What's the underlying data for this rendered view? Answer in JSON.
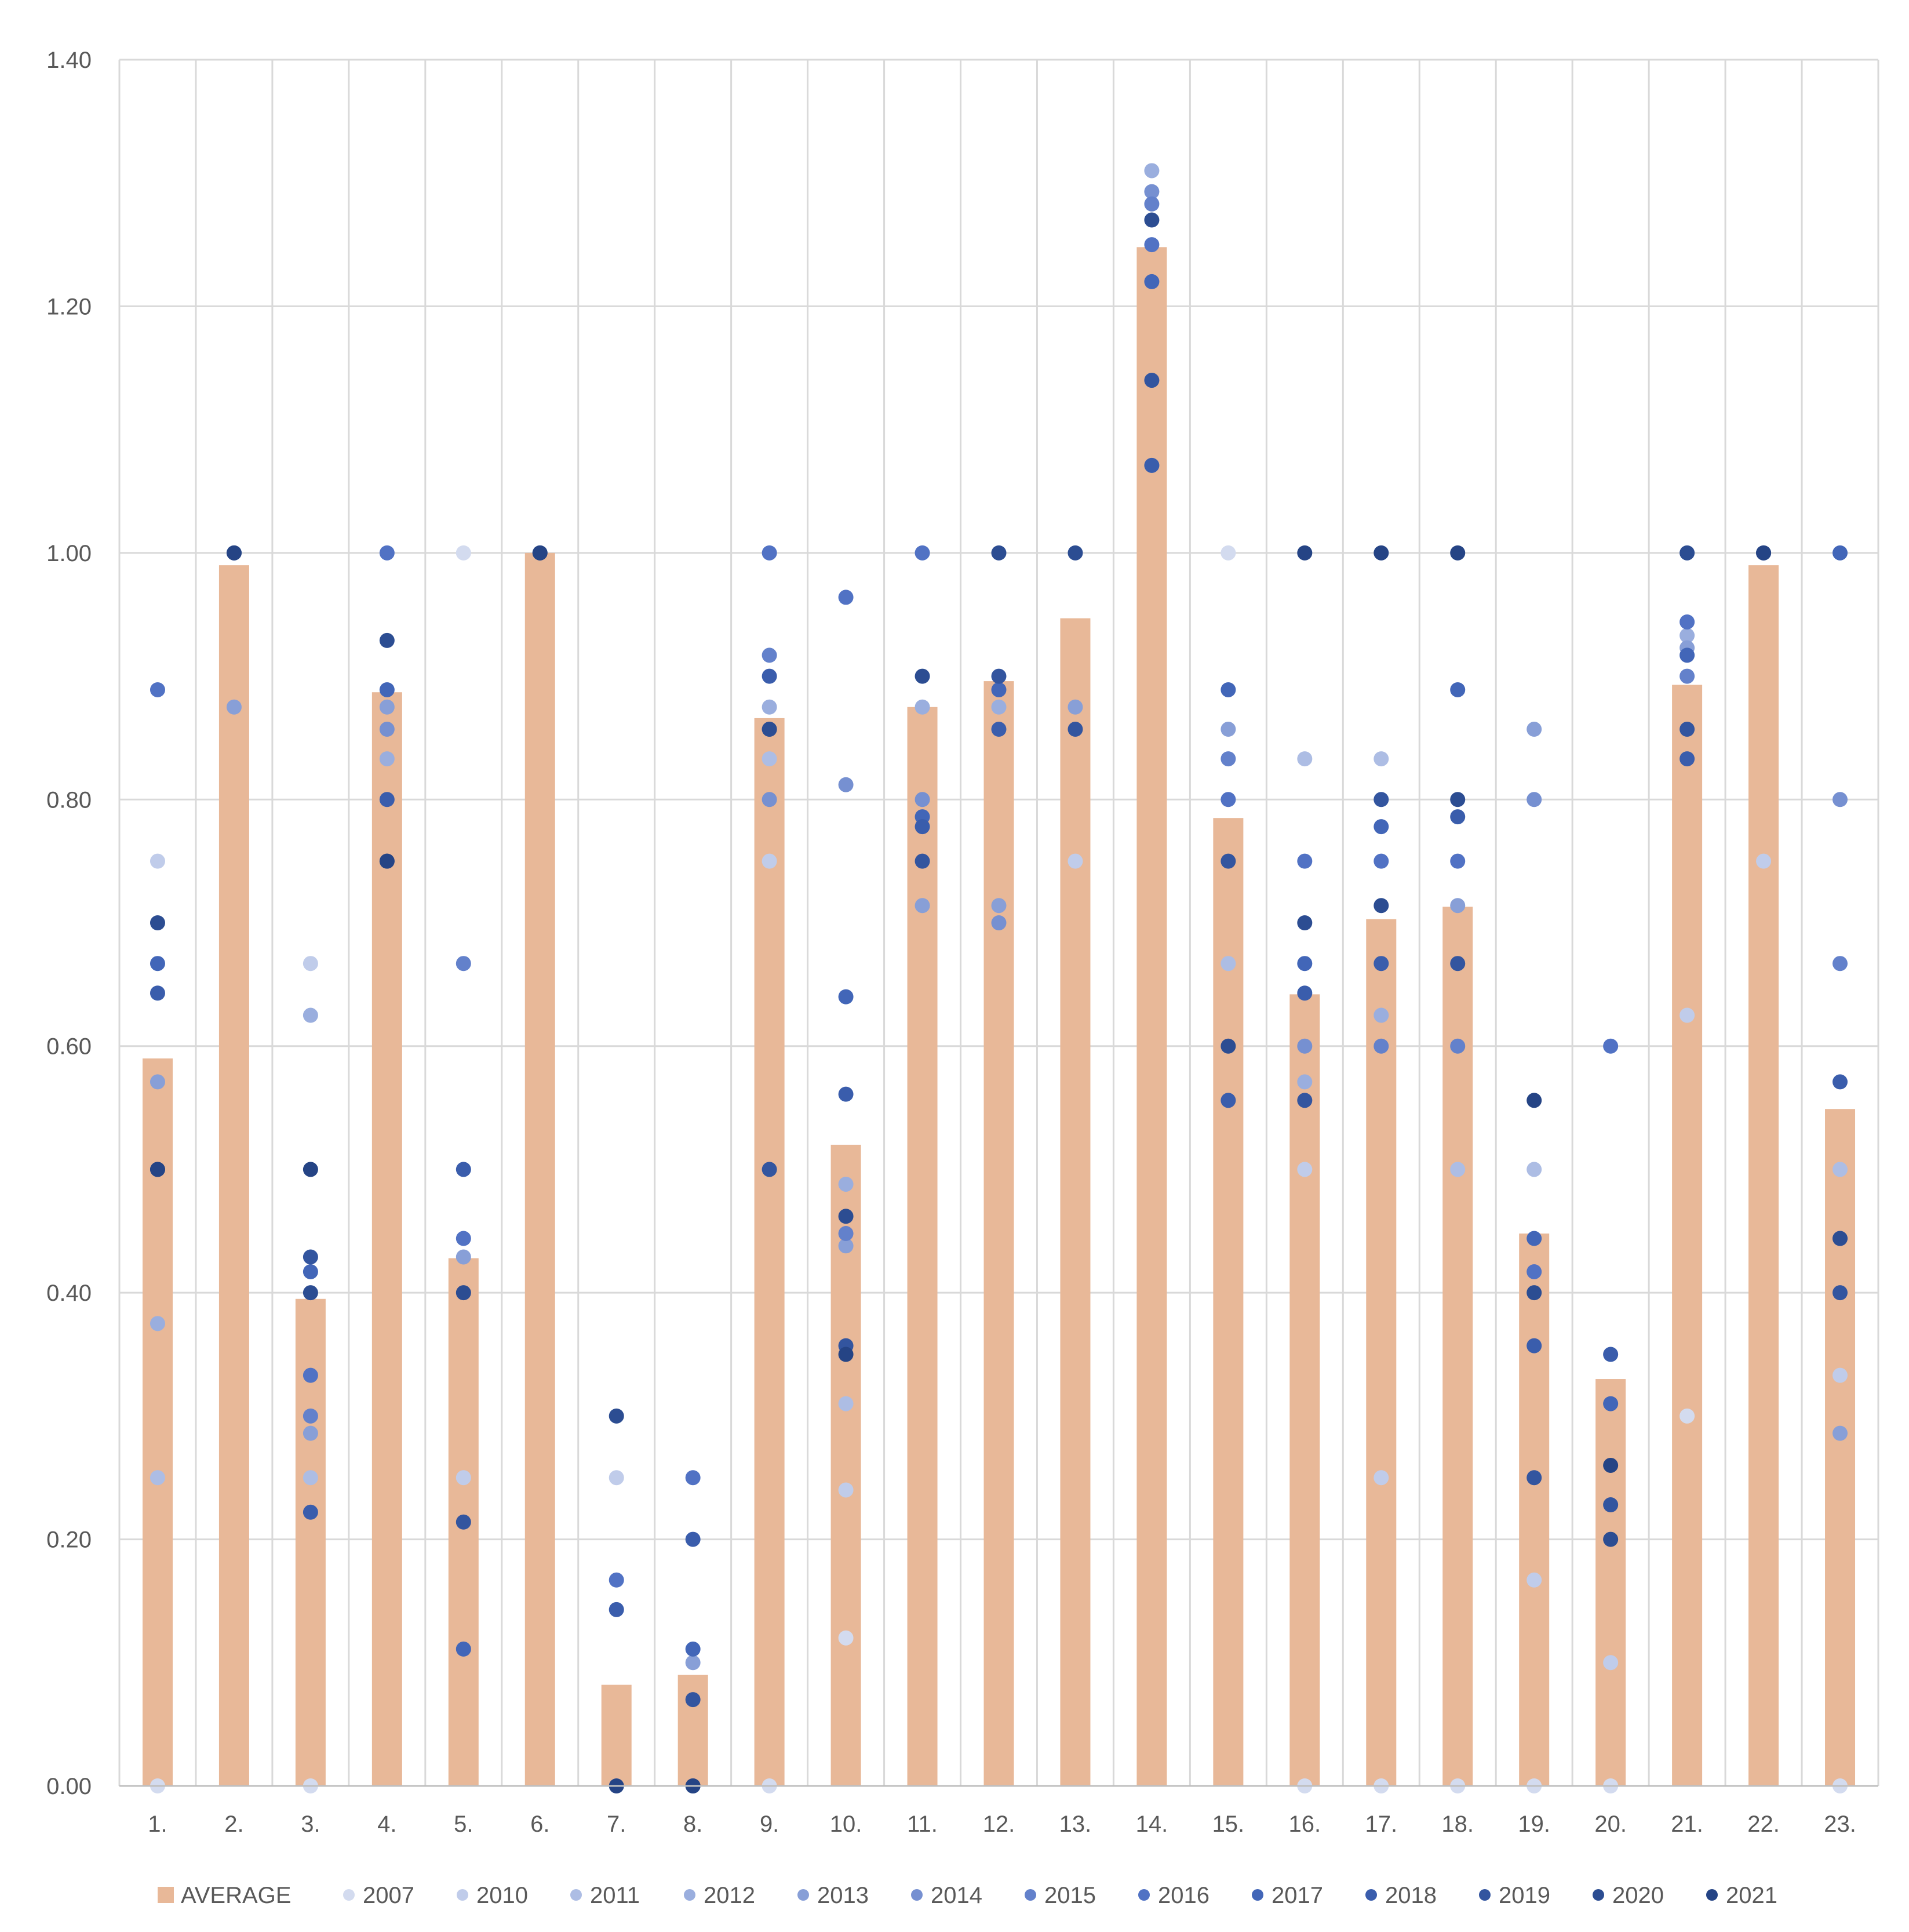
{
  "chart_data": {
    "type": "bar",
    "title": "",
    "xlabel": "",
    "ylabel": "",
    "ylim": [
      0,
      1.4
    ],
    "y_ticks": [
      "0.00",
      "0.20",
      "0.40",
      "0.60",
      "0.80",
      "1.00",
      "1.20",
      "1.40"
    ],
    "grid": true,
    "legend_position": "bottom",
    "categories": [
      "1.",
      "2.",
      "3.",
      "4.",
      "5.",
      "6.",
      "7.",
      "8.",
      "9.",
      "10.",
      "11.",
      "12.",
      "13.",
      "14.",
      "15.",
      "16.",
      "17.",
      "18.",
      "19.",
      "20.",
      "21.",
      "22.",
      "23."
    ],
    "bar_series": {
      "name": "AVERAGE",
      "color": "#e8b898",
      "values": [
        0.59,
        0.99,
        0.395,
        0.887,
        0.428,
        1.0,
        0.082,
        0.09,
        0.866,
        0.52,
        0.875,
        0.896,
        0.947,
        1.248,
        0.785,
        0.642,
        0.703,
        0.713,
        0.448,
        0.33,
        0.893,
        0.99,
        0.549
      ]
    },
    "legend": [
      "AVERAGE",
      "2007",
      "2010",
      "2011",
      "2012",
      "2013",
      "2014",
      "2015",
      "2016",
      "2017",
      "2018",
      "2019",
      "2020",
      "2021"
    ],
    "scatter_series": [
      {
        "name": "2007",
        "color": "#d3dbef",
        "values": [
          0.0,
          null,
          0.0,
          null,
          1.0,
          null,
          0.0,
          null,
          0.0,
          0.12,
          null,
          null,
          null,
          null,
          1.0,
          0.0,
          0.0,
          0.0,
          0.0,
          0.0,
          0.3,
          null,
          0.0
        ]
      },
      {
        "name": "2010",
        "color": "#c0ccea",
        "values": [
          0.75,
          null,
          0.667,
          null,
          0.25,
          null,
          0.25,
          null,
          0.75,
          0.24,
          null,
          null,
          0.75,
          null,
          null,
          0.5,
          0.25,
          null,
          0.167,
          0.1,
          0.625,
          0.75,
          0.333
        ]
      },
      {
        "name": "2011",
        "color": "#adbde4",
        "values": [
          0.25,
          null,
          0.25,
          null,
          null,
          null,
          null,
          null,
          0.833,
          0.31,
          null,
          null,
          null,
          null,
          0.667,
          0.833,
          0.833,
          0.5,
          0.5,
          null,
          null,
          null,
          0.5
        ]
      },
      {
        "name": "2012",
        "color": "#9aaede",
        "values": [
          0.375,
          null,
          0.625,
          0.833,
          null,
          null,
          null,
          null,
          0.875,
          0.488,
          0.875,
          0.875,
          null,
          1.31,
          null,
          0.571,
          0.625,
          null,
          null,
          null,
          0.933,
          null,
          null
        ]
      },
      {
        "name": "2013",
        "color": "#889fd7",
        "values": [
          0.571,
          0.875,
          0.286,
          0.875,
          0.429,
          null,
          null,
          0.1,
          null,
          0.438,
          0.714,
          0.714,
          0.875,
          1.071,
          0.857,
          null,
          null,
          0.714,
          0.857,
          null,
          0.923,
          null,
          0.286
        ]
      },
      {
        "name": "2014",
        "color": "#7690d1",
        "values": [
          null,
          null,
          null,
          0.857,
          null,
          null,
          null,
          null,
          0.8,
          0.812,
          0.8,
          0.7,
          null,
          1.293,
          null,
          0.6,
          null,
          null,
          0.8,
          null,
          null,
          null,
          0.8
        ]
      },
      {
        "name": "2015",
        "color": "#6381cb",
        "values": [
          null,
          null,
          0.3,
          null,
          0.667,
          null,
          null,
          null,
          0.917,
          0.448,
          null,
          null,
          null,
          1.283,
          0.833,
          null,
          0.6,
          0.6,
          null,
          null,
          0.9,
          null,
          0.667
        ]
      },
      {
        "name": "2016",
        "color": "#5172c4",
        "values": [
          0.889,
          null,
          0.333,
          1.0,
          0.444,
          null,
          0.167,
          0.25,
          1.0,
          0.964,
          1.0,
          null,
          null,
          1.25,
          0.8,
          0.75,
          0.75,
          0.75,
          0.417,
          0.6,
          0.944,
          null,
          0.444
        ]
      },
      {
        "name": "2017",
        "color": "#4266b8",
        "values": [
          0.667,
          null,
          0.417,
          0.889,
          0.111,
          null,
          null,
          0.111,
          0.857,
          0.64,
          0.786,
          0.889,
          null,
          1.22,
          0.889,
          0.667,
          0.778,
          0.889,
          0.444,
          0.31,
          0.917,
          null,
          1.0
        ]
      },
      {
        "name": "2018",
        "color": "#3a5dac",
        "values": [
          0.643,
          null,
          0.222,
          0.8,
          0.5,
          null,
          0.143,
          0.2,
          0.9,
          0.561,
          0.778,
          0.857,
          null,
          1.071,
          0.556,
          0.643,
          0.667,
          0.786,
          0.357,
          0.35,
          0.833,
          null,
          0.571
        ]
      },
      {
        "name": "2019",
        "color": "#33559f",
        "values": [
          0.5,
          null,
          0.429,
          0.75,
          0.214,
          null,
          null,
          0.07,
          0.5,
          0.357,
          0.75,
          0.9,
          0.857,
          1.14,
          0.75,
          0.556,
          0.8,
          0.667,
          0.25,
          0.228,
          0.857,
          null,
          0.4
        ]
      },
      {
        "name": "2020",
        "color": "#2c4d92",
        "values": [
          0.7,
          1.0,
          0.4,
          0.929,
          0.4,
          1.0,
          0.3,
          0.0,
          0.857,
          0.462,
          0.9,
          1.0,
          1.0,
          1.27,
          0.6,
          0.7,
          0.714,
          0.8,
          0.4,
          0.2,
          1.0,
          1.0,
          0.444
        ]
      },
      {
        "name": "2021",
        "color": "#254485",
        "values": [
          0.5,
          1.0,
          0.5,
          0.75,
          null,
          1.0,
          0.0,
          0.0,
          null,
          0.35,
          null,
          null,
          null,
          null,
          null,
          1.0,
          1.0,
          1.0,
          0.556,
          0.26,
          null,
          1.0,
          null
        ]
      }
    ]
  }
}
